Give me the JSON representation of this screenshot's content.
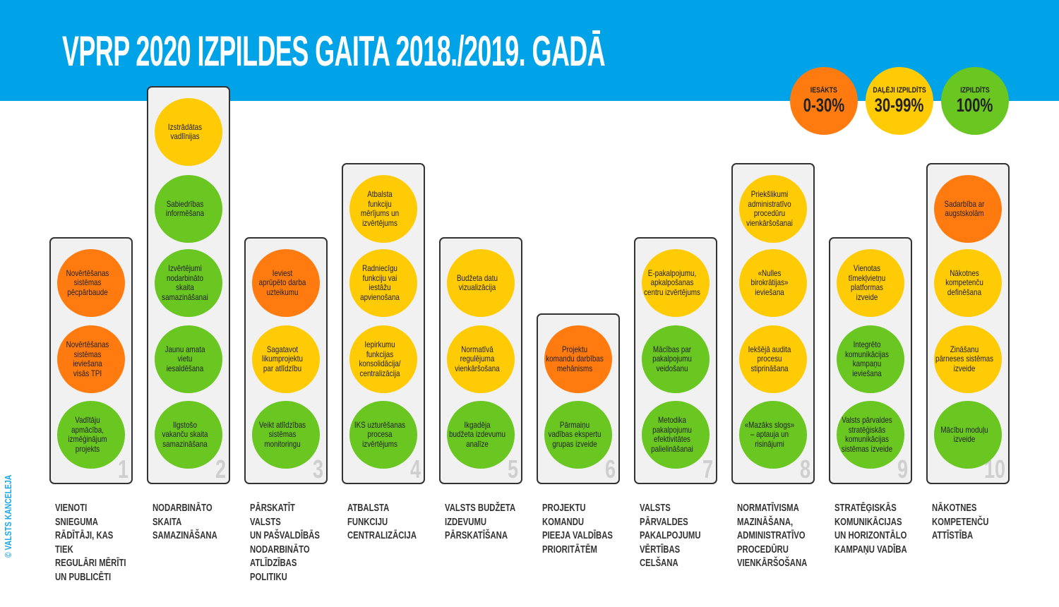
{
  "title": "VPRP 2020 IZPILDES GAITA 2018./2019. GADĀ",
  "copyright": "© VALSTS KANCELEJA",
  "colors": {
    "banner": "#00a3e8",
    "orange": "#ff7b0f",
    "yellow": "#ffcb05",
    "green": "#6ac621"
  },
  "legend": [
    {
      "status": "orange",
      "label": "IESĀKTS",
      "range": "0-30%"
    },
    {
      "status": "yellow",
      "label": "DAĻĒJI IZPILDĪTS",
      "range": "30-99%"
    },
    {
      "status": "green",
      "label": "IZPILDĪTS",
      "range": "100%"
    }
  ],
  "columns": [
    {
      "number": "1",
      "label": "VIENOTI\nSNIEGUMA\nRĀDĪTĀJI, KAS TIEK\nREGULĀRI MĒRĪTI\nUN PUBLICĒTI",
      "items": [
        {
          "status": "orange",
          "text": "Novērtēšanas\nsistēmas\npēcpārbaude"
        },
        {
          "status": "orange",
          "text": "Novērtēšanas\nsistēmas\nieviešana\nvisās TPI"
        },
        {
          "status": "green",
          "text": "Vadītāju\napmācība,\nizmēģinājum\nprojekts"
        }
      ]
    },
    {
      "number": "2",
      "label": "NODARBINĀTO\nSKAITA\nSAMAZINĀŠANA",
      "items": [
        {
          "status": "yellow",
          "text": "Izstrādātas\nvadlīnijas"
        },
        {
          "status": "green",
          "text": "Sabiedrības\ninformēšana"
        },
        {
          "status": "green",
          "text": "Izvērtējumi\nnodarbināto\nskaita\nsamazināšanai"
        },
        {
          "status": "green",
          "text": "Jaunu amata\nvietu\niesaldēšana"
        },
        {
          "status": "green",
          "text": "Ilgstošo\nvakanču skaita\nsamazināšana"
        }
      ]
    },
    {
      "number": "3",
      "label": "PĀRSKATĪT VALSTS\nUN PAŠVALDĪBĀS\nNODARBINĀTO\nATLĪDZĪBAS POLITIKU",
      "items": [
        {
          "status": "orange",
          "text": "Ieviest\naprūpēto darba\nuzteikumu"
        },
        {
          "status": "yellow",
          "text": "Sagatavot\nlikumprojektu\npar atlīdzību"
        },
        {
          "status": "green",
          "text": "Veikt atlīdzības\nsistēmas\nmonitoringu"
        }
      ]
    },
    {
      "number": "4",
      "label": "ATBALSTA\nFUNKCIJU\nCENTRALIZĀCIJA",
      "items": [
        {
          "status": "yellow",
          "text": "Atbalsta\nfunkciju\nmērījums un\nizvērtējums"
        },
        {
          "status": "yellow",
          "text": "Radniecīgu\nfunkciju vai\niestāžu\napvienošana"
        },
        {
          "status": "yellow",
          "text": "Iepirkumu\nfunkcijas\nkonsolidācija/\ncentralizācija"
        },
        {
          "status": "green",
          "text": "IKS uzturēšanas\nprocesa\nizvērtējums"
        }
      ]
    },
    {
      "number": "5",
      "label": "VALSTS BUDŽETA\nIZDEVUMU\nPĀRSKATĪŠANA",
      "items": [
        {
          "status": "yellow",
          "text": "Budžeta datu\nvizualizācija"
        },
        {
          "status": "yellow",
          "text": "Normatīvā\nregulējuma\nvienkāršošana"
        },
        {
          "status": "green",
          "text": "Ikgadēja\nbudžeta izdevumu\nanalīze"
        }
      ]
    },
    {
      "number": "6",
      "label": "PROJEKTU\nKOMANDU\nPIEEJA VALDĪBAS\nPRIORITĀTĒM",
      "items": [
        {
          "status": "orange",
          "text": "Projektu\nkomandu darbības\nmehānisms"
        },
        {
          "status": "green",
          "text": "Pārmaiņu\nvadības ekspertu\ngrupas izveide"
        }
      ]
    },
    {
      "number": "7",
      "label": "VALSTS\nPĀRVALDES\nPAKALPOJUMU\nVĒRTĪBAS\nCELŠANA",
      "items": [
        {
          "status": "yellow",
          "text": "E-pakalpojumu,\napkalpošanas\ncentru izvērtējums"
        },
        {
          "status": "green",
          "text": "Mācības par\npakalpojumu\nveidošanu"
        },
        {
          "status": "green",
          "text": "Metodika\npakalpojumu\nefektivitātes\npalielināšanai"
        }
      ]
    },
    {
      "number": "8",
      "label": "NORMATĪVISMA\nMAZINĀŠANA,\nADMINISTRATĪVO\nPROCEDŪRU\nVIENKĀRŠOŠANA",
      "items": [
        {
          "status": "yellow",
          "text": "Priekšlikumi\nadministratīvo\nprocedūru\nvienkāršošanai"
        },
        {
          "status": "yellow",
          "text": "«Nulles\nbirokrātijas»\nieviešana"
        },
        {
          "status": "yellow",
          "text": "Iekšējā audita\nprocesu\nstiprināšana"
        },
        {
          "status": "green",
          "text": "«Mazāks slogs»\n– aptauja un\nrisinājumi"
        }
      ]
    },
    {
      "number": "9",
      "label": "STRATĒĢISKĀS\nKOMUNIKĀCIJAS\nUN HORIZONTĀLO\nKAMPAŅU VADĪBA",
      "items": [
        {
          "status": "yellow",
          "text": "Vienotas\ntīmekļvietņu\nplatformas\nizveide"
        },
        {
          "status": "green",
          "text": "Integrēto\nkomunikācijas\nkampaņu\nieviešana"
        },
        {
          "status": "green",
          "text": "Valsts pārvaldes\nstratēģiskās\nkomunikācijas\nsistēmas izveide"
        }
      ]
    },
    {
      "number": "10",
      "label": "NĀKOTNES\nKOMPETENČU\nATTĪSTĪBA",
      "items": [
        {
          "status": "orange",
          "text": "Sadarbība ar\naugstskolām"
        },
        {
          "status": "yellow",
          "text": "Nākotnes\nkompetenču\ndefinēšana"
        },
        {
          "status": "yellow",
          "text": "Zināšanu\npārneses sistēmas\nizveide"
        },
        {
          "status": "green",
          "text": "Mācību moduļu\nizveide"
        }
      ]
    }
  ]
}
